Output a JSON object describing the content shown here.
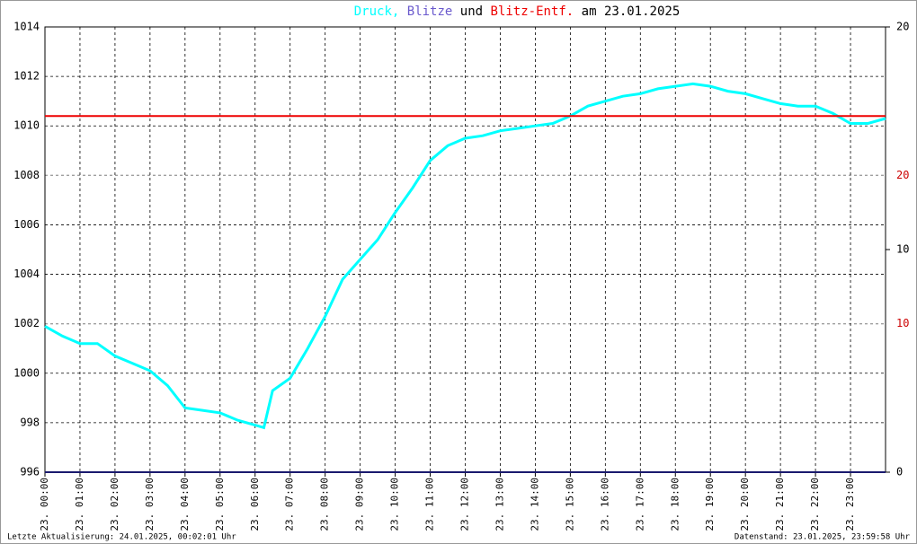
{
  "chart_data": {
    "type": "line",
    "title": [
      "und",
      "am 23.01.2025"
    ],
    "footer_left": "Letzte Aktualisierung: 24.01.2025, 00:02:01 Uhr",
    "footer_right": "Datenstand: 23.01.2025, 23:59:58 Uhr",
    "xlim": [
      0,
      24
    ],
    "xticks": [
      {
        "value": 0,
        "label": "23. 00:00"
      },
      {
        "value": 1,
        "label": "23. 01:00"
      },
      {
        "value": 2,
        "label": "23. 02:00"
      },
      {
        "value": 3,
        "label": "23. 03:00"
      },
      {
        "value": 4,
        "label": "23. 04:00"
      },
      {
        "value": 5,
        "label": "23. 05:00"
      },
      {
        "value": 6,
        "label": "23. 06:00"
      },
      {
        "value": 7,
        "label": "23. 07:00"
      },
      {
        "value": 8,
        "label": "23. 08:00"
      },
      {
        "value": 9,
        "label": "23. 09:00"
      },
      {
        "value": 10,
        "label": "23. 10:00"
      },
      {
        "value": 11,
        "label": "23. 11:00"
      },
      {
        "value": 12,
        "label": "23. 12:00"
      },
      {
        "value": 13,
        "label": "23. 13:00"
      },
      {
        "value": 14,
        "label": "23. 14:00"
      },
      {
        "value": 15,
        "label": "23. 15:00"
      },
      {
        "value": 16,
        "label": "23. 16:00"
      },
      {
        "value": 17,
        "label": "23. 17:00"
      },
      {
        "value": 18,
        "label": "23. 18:00"
      },
      {
        "value": 19,
        "label": "23. 19:00"
      },
      {
        "value": 20,
        "label": "23. 20:00"
      },
      {
        "value": 21,
        "label": "23. 21:00"
      },
      {
        "value": 22,
        "label": "23. 22:00"
      },
      {
        "value": 23,
        "label": "23. 23:00"
      }
    ],
    "ylim": [
      996,
      1014
    ],
    "yticks": [
      996,
      998,
      1000,
      1002,
      1004,
      1006,
      1008,
      1010,
      1012,
      1014
    ],
    "y2lim": [
      0,
      20
    ],
    "y2ticks": [
      0,
      10,
      20
    ],
    "y2color": "#000000",
    "y3lim": [
      0,
      30
    ],
    "y3ticks": [
      10,
      20
    ],
    "y3color": "#cc0000",
    "grid": true,
    "series": [
      {
        "name": "Druck,",
        "color": "#00ffff",
        "x": [
          0,
          0.5,
          1,
          1.5,
          2,
          2.5,
          3,
          3.5,
          4,
          4.5,
          5,
          5.5,
          6,
          6.25,
          6.5,
          7,
          7.5,
          8,
          8.5,
          9,
          9.5,
          10,
          10.5,
          11,
          11.5,
          12,
          12.5,
          13,
          13.5,
          14,
          14.5,
          15,
          15.5,
          16,
          16.5,
          17,
          17.5,
          18,
          18.5,
          19,
          19.5,
          20,
          20.5,
          21,
          21.5,
          22,
          22.5,
          23,
          23.5,
          24
        ],
        "values": [
          1001.9,
          1001.5,
          1001.2,
          1001.2,
          1000.7,
          1000.4,
          1000.1,
          999.5,
          998.6,
          998.5,
          998.4,
          998.1,
          997.9,
          997.8,
          999.3,
          999.8,
          1001,
          1002.3,
          1003.8,
          1004.6,
          1005.4,
          1006.5,
          1007.5,
          1008.6,
          1009.2,
          1009.5,
          1009.6,
          1009.8,
          1009.9,
          1010,
          1010.1,
          1010.4,
          1010.8,
          1011,
          1011.2,
          1011.3,
          1011.5,
          1011.6,
          1011.7,
          1011.6,
          1011.4,
          1011.3,
          1011.1,
          1010.9,
          1010.8,
          1010.8,
          1010.5,
          1010.1,
          1010.1,
          1010.3
        ]
      },
      {
        "name": "Blitze",
        "color": "#1a1a6e",
        "title_color": "#6a5acd",
        "axis": "y2",
        "x": [
          0,
          24
        ],
        "values": [
          0,
          0
        ]
      },
      {
        "name": "Blitz-Entf.",
        "color": "#ee0000",
        "axis": "y3",
        "x": [
          0,
          24
        ],
        "values": [
          24,
          24
        ]
      }
    ]
  }
}
